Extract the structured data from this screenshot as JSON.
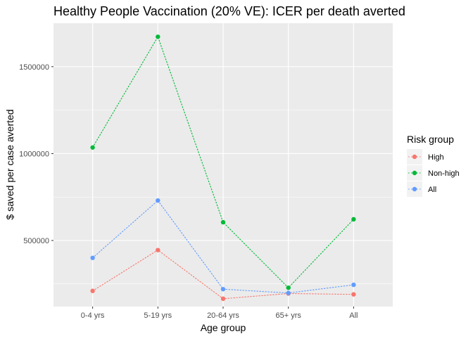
{
  "chart_data": {
    "type": "line",
    "title": "Healthy People Vaccination (20% VE): ICER per death averted",
    "xlabel": "Age group",
    "ylabel": "$ saved per case averted",
    "categories": [
      "0-4 yrs",
      "5-19 yrs",
      "20-64 yrs",
      "65+ yrs",
      "All"
    ],
    "y_ticks": [
      500000,
      1000000,
      1500000
    ],
    "y_tick_labels": [
      "500000",
      "1000000",
      "1500000"
    ],
    "ylim": [
      120000,
      1750000
    ],
    "grid": true,
    "line_style": "dotted",
    "legend": {
      "title": "Risk group",
      "position": "right"
    },
    "series": [
      {
        "name": "High",
        "color": "#F8766D",
        "values": [
          210000,
          445000,
          165000,
          195000,
          190000
        ]
      },
      {
        "name": "Non-high",
        "color": "#00BA38",
        "values": [
          1035000,
          1672000,
          605000,
          228000,
          622000
        ]
      },
      {
        "name": "All",
        "color": "#619CFF",
        "values": [
          400000,
          730000,
          220000,
          198000,
          245000
        ]
      }
    ]
  }
}
